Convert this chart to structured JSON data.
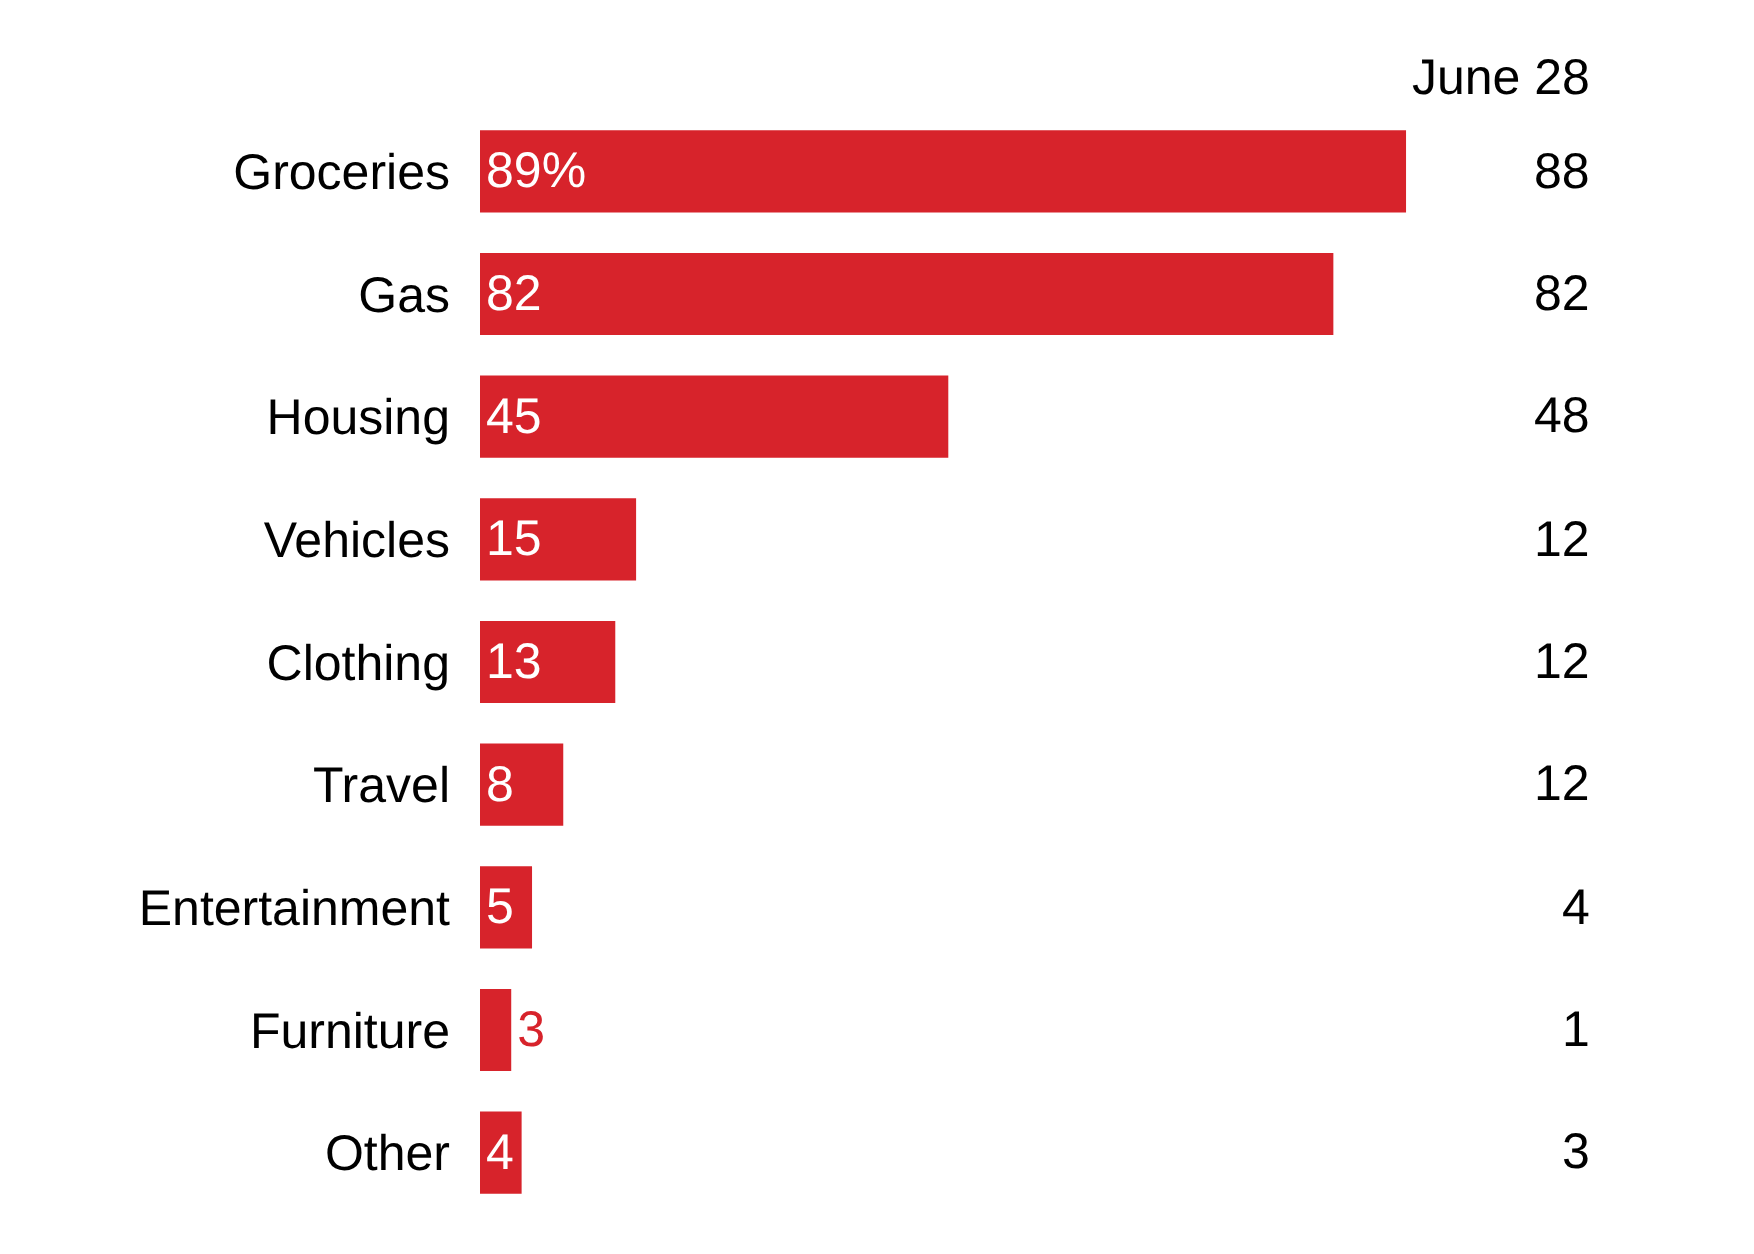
{
  "chart_data": {
    "type": "bar",
    "orientation": "horizontal",
    "categories": [
      "Groceries",
      "Gas",
      "Housing",
      "Vehicles",
      "Clothing",
      "Travel",
      "Entertainment",
      "Furniture",
      "Other"
    ],
    "values": [
      89,
      82,
      45,
      15,
      13,
      8,
      5,
      3,
      4
    ],
    "value_labels": [
      "89%",
      "82",
      "45",
      "15",
      "13",
      "8",
      "5",
      "3",
      "4"
    ],
    "color": "#d7232b",
    "legend": false,
    "tick_labels": "y",
    "annotations": [
      "June 28",
      "88",
      "82",
      "48",
      "12",
      "12",
      "12",
      "4",
      "1",
      "3"
    ]
  }
}
